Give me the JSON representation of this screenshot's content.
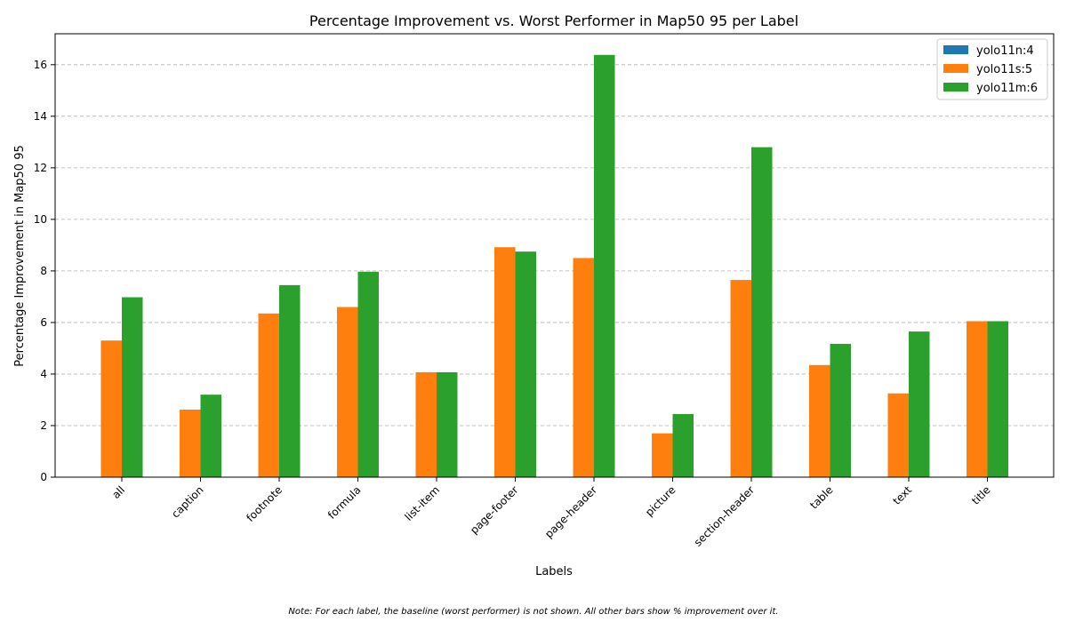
{
  "chart_data": {
    "type": "bar",
    "title": "Percentage Improvement vs. Worst Performer in Map50 95 per Label",
    "xlabel": "Labels",
    "ylabel": "Percentage Improvement in Map50 95",
    "categories": [
      "all",
      "caption",
      "footnote",
      "formula",
      "list-item",
      "page-footer",
      "page-header",
      "picture",
      "section-header",
      "table",
      "text",
      "title"
    ],
    "series": [
      {
        "name": "yolo11n:4",
        "color": "#1f77b4",
        "values": [
          0,
          0,
          0,
          0,
          0,
          0,
          0,
          0,
          0,
          0,
          0,
          0
        ]
      },
      {
        "name": "yolo11s:5",
        "color": "#ff7f0e",
        "values": [
          5.3,
          2.62,
          6.35,
          6.6,
          4.07,
          8.92,
          8.5,
          1.7,
          7.65,
          4.35,
          3.25,
          6.05
        ]
      },
      {
        "name": "yolo11m:6",
        "color": "#2ca02c",
        "values": [
          6.98,
          3.2,
          7.45,
          7.97,
          4.07,
          8.75,
          16.38,
          2.45,
          12.8,
          5.17,
          5.65,
          6.05
        ]
      }
    ],
    "ylim": [
      0,
      17.2
    ],
    "yticks": [
      0,
      2,
      4,
      6,
      8,
      10,
      12,
      14,
      16
    ],
    "grid": "y-dashed",
    "legend_position": "top-right",
    "note": "Note: For each label, the baseline (worst performer) is not shown. All other bars show % improvement over it."
  }
}
